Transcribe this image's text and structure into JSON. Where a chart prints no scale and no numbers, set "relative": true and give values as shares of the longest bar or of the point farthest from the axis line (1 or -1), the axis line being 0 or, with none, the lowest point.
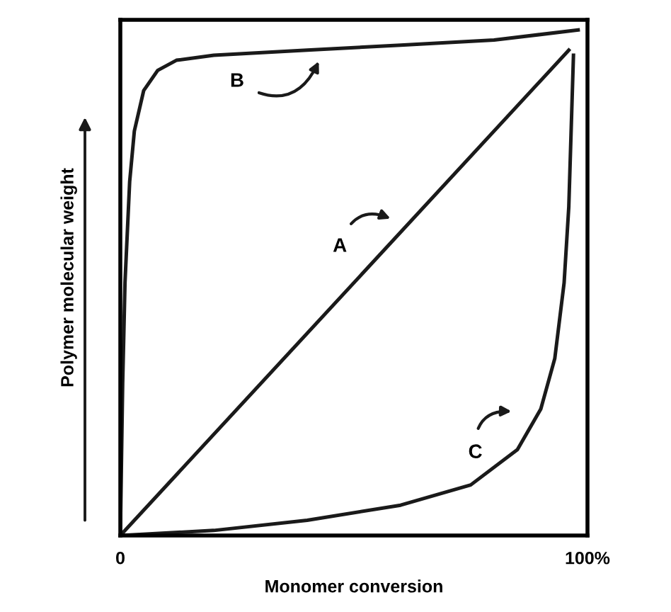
{
  "chart_data": {
    "type": "line",
    "relative": true,
    "xlabel": "Monomer conversion",
    "ylabel": "Polymer molecular weight",
    "xlim": [
      0,
      100
    ],
    "xticks": [
      0,
      {
        "value": 100,
        "label": "100%"
      }
    ],
    "tick_labels": "x",
    "marker": "none",
    "line_style": "solid",
    "series": [
      {
        "color": "#1a1a1a",
        "x": [
          0,
          96
        ],
        "values": [
          0,
          0.96
        ]
      },
      {
        "color": "#1a1a1a",
        "x": [
          0,
          0.5,
          1,
          2,
          3,
          5,
          8,
          12,
          20,
          40,
          60,
          80,
          98
        ],
        "values": [
          0,
          0.3,
          0.5,
          0.7,
          0.8,
          0.88,
          0.92,
          0.94,
          0.95,
          0.96,
          0.97,
          0.98,
          1
        ]
      },
      {
        "color": "#1a1a1a",
        "x": [
          0,
          20,
          40,
          60,
          75,
          85,
          90,
          93,
          95,
          96,
          97
        ],
        "values": [
          0,
          0.01,
          0.03,
          0.06,
          0.1,
          0.17,
          0.25,
          0.35,
          0.5,
          0.65,
          0.95
        ]
      }
    ],
    "annotations": [
      "A",
      "B",
      "C"
    ]
  }
}
